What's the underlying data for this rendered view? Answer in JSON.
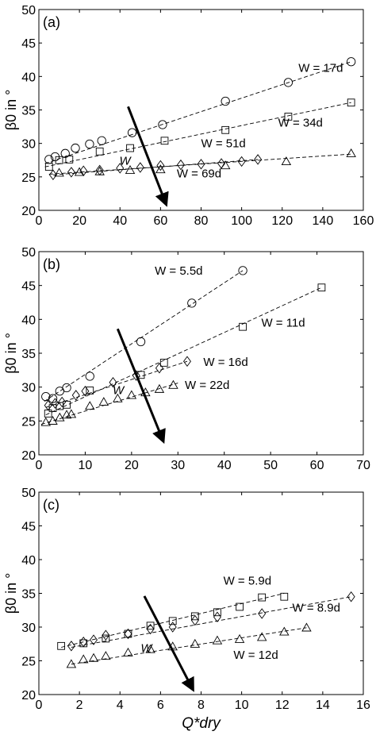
{
  "chart_data": [
    {
      "type": "scatter",
      "panel_label": "(a)",
      "ylabel": "β0 in °",
      "xlabel": "",
      "xlim": [
        0,
        160
      ],
      "ylim": [
        20,
        50
      ],
      "xticks": [
        0,
        20,
        40,
        60,
        80,
        100,
        120,
        140,
        160
      ],
      "yticks": [
        20,
        25,
        30,
        35,
        40,
        45,
        50
      ],
      "arrow_label": "W",
      "arrow": {
        "from": [
          44,
          35.5
        ],
        "to": [
          62,
          21.5
        ]
      },
      "series": [
        {
          "name": "W = 17d",
          "marker": "circle",
          "x": [
            5,
            8,
            13,
            18,
            25,
            31,
            46,
            61,
            92,
            123,
            154
          ],
          "y": [
            27.6,
            28.0,
            28.5,
            29.3,
            29.9,
            30.4,
            31.6,
            32.8,
            36.3,
            39.1,
            42.2
          ],
          "fit": [
            [
              3,
              27.0
            ],
            [
              154,
              42.2
            ]
          ],
          "label_pos": [
            128,
            40.7
          ]
        },
        {
          "name": "W = 34d",
          "marker": "square",
          "x": [
            5,
            10,
            15,
            30,
            45,
            62,
            92,
            123,
            154
          ],
          "y": [
            26.5,
            27.5,
            27.6,
            28.8,
            29.3,
            30.4,
            32.0,
            34.0,
            36.1
          ],
          "fit": [
            [
              3,
              26.5
            ],
            [
              154,
              36.1
            ]
          ],
          "label_pos": [
            118,
            32.5
          ]
        },
        {
          "name": "W = 51d",
          "marker": "diamond",
          "x": [
            7,
            16,
            22,
            30,
            40,
            50,
            60,
            70,
            80,
            90,
            100,
            108
          ],
          "y": [
            25.3,
            25.7,
            25.9,
            26.0,
            26.3,
            26.4,
            26.7,
            26.8,
            26.9,
            27.0,
            27.3,
            27.6
          ],
          "fit": [
            [
              7,
              25.3
            ],
            [
              108,
              27.6
            ]
          ],
          "label_pos": [
            80,
            29.4
          ]
        },
        {
          "name": "W = 69d",
          "marker": "triangle",
          "x": [
            10,
            20,
            30,
            45,
            60,
            92,
            122,
            154
          ],
          "y": [
            25.6,
            25.7,
            25.8,
            26.0,
            26.1,
            26.7,
            27.3,
            28.5
          ],
          "fit": [
            [
              5,
              25.4
            ],
            [
              154,
              28.4
            ]
          ],
          "label_pos": [
            68,
            24.9
          ]
        }
      ]
    },
    {
      "type": "scatter",
      "panel_label": "(b)",
      "ylabel": "β0 in °",
      "xlabel": "",
      "xlim": [
        0,
        70
      ],
      "ylim": [
        20,
        50
      ],
      "xticks": [
        0,
        10,
        20,
        30,
        40,
        50,
        60,
        70
      ],
      "yticks": [
        20,
        25,
        30,
        35,
        40,
        45,
        50
      ],
      "arrow_label": "W",
      "arrow": {
        "from": [
          17,
          38.6
        ],
        "to": [
          26.5,
          22.6
        ]
      },
      "series": [
        {
          "name": "W = 5.5d",
          "marker": "circle",
          "x": [
            1.5,
            3,
            4.5,
            6,
            11,
            22,
            33,
            44
          ],
          "y": [
            28.6,
            28.3,
            29.4,
            29.9,
            31.6,
            36.7,
            42.4,
            47.2
          ],
          "fit": [
            [
              1.2,
              27.9
            ],
            [
              44,
              47.2
            ]
          ],
          "label_pos": [
            25,
            46.6
          ]
        },
        {
          "name": "W = 11d",
          "marker": "square",
          "x": [
            2,
            3,
            4.5,
            6,
            11,
            22,
            27,
            44,
            61
          ],
          "y": [
            26.1,
            26.9,
            27.2,
            27.4,
            29.5,
            31.8,
            33.6,
            38.9,
            44.7
          ],
          "fit": [
            [
              1.5,
              25.9
            ],
            [
              61,
              44.7
            ]
          ],
          "label_pos": [
            48,
            38.9
          ]
        },
        {
          "name": "W = 16d",
          "marker": "diamond",
          "x": [
            2,
            3.5,
            5,
            8,
            10,
            16,
            21,
            26,
            32
          ],
          "y": [
            27.3,
            27.6,
            27.8,
            28.8,
            29.4,
            30.7,
            31.7,
            32.8,
            33.8
          ],
          "fit": [
            [
              1.5,
              27.0
            ],
            [
              32,
              33.8
            ]
          ],
          "label_pos": [
            35.5,
            33.1
          ]
        },
        {
          "name": "W = 22d",
          "marker": "triangle",
          "x": [
            1.5,
            3,
            4.5,
            6,
            7,
            11,
            14,
            17,
            20,
            23,
            26,
            29
          ],
          "y": [
            24.8,
            25.0,
            25.5,
            25.9,
            26.0,
            27.2,
            27.8,
            28.3,
            28.8,
            29.2,
            29.7,
            30.3
          ],
          "fit": [
            [
              0.5,
              24.5
            ],
            [
              30,
              30.6
            ]
          ],
          "label_pos": [
            31.5,
            29.7
          ]
        }
      ]
    },
    {
      "type": "scatter",
      "panel_label": "(c)",
      "ylabel": "β0 in °",
      "xlabel": "Q*dry",
      "xlim": [
        0,
        16
      ],
      "ylim": [
        20,
        50
      ],
      "xticks": [
        0,
        2,
        4,
        6,
        8,
        10,
        12,
        14,
        16
      ],
      "yticks": [
        20,
        25,
        30,
        35,
        40,
        45,
        50
      ],
      "arrow_label": "W",
      "arrow": {
        "from": [
          5.2,
          34.6
        ],
        "to": [
          7.5,
          21.3
        ]
      },
      "series": [
        {
          "name": "W = 5.9d",
          "marker": "square",
          "x": [
            1.1,
            2.2,
            3.3,
            4.4,
            5.5,
            6.6,
            7.7,
            8.8,
            9.9,
            11,
            12.1
          ],
          "y": [
            27.2,
            27.6,
            28.3,
            29.0,
            30.2,
            30.9,
            31.6,
            32.2,
            33.0,
            34.4,
            34.5
          ],
          "fit": [
            [
              1.1,
              27.0
            ],
            [
              12.1,
              35.0
            ]
          ],
          "label_pos": [
            9.1,
            36.3
          ]
        },
        {
          "name": "W = 8.9d",
          "marker": "diamond",
          "x": [
            1.6,
            2.2,
            2.7,
            3.3,
            4.4,
            5.5,
            6.6,
            7.7,
            8.8,
            11,
            15.4
          ],
          "y": [
            27.2,
            27.8,
            28.1,
            28.8,
            29.0,
            29.7,
            30.0,
            31.0,
            31.5,
            32.0,
            34.5
          ],
          "fit": [
            [
              1.6,
              27.0
            ],
            [
              15.4,
              34.5
            ]
          ],
          "label_pos": [
            12.5,
            32.3
          ]
        },
        {
          "name": "W = 12d",
          "marker": "triangle",
          "x": [
            1.6,
            2.2,
            2.7,
            3.3,
            4.4,
            5.5,
            6.6,
            7.7,
            8.8,
            9.9,
            11,
            12.1,
            13.2
          ],
          "y": [
            24.5,
            25.2,
            25.4,
            25.7,
            26.2,
            26.7,
            27.1,
            27.5,
            28.0,
            28.2,
            28.5,
            29.3,
            29.9
          ],
          "fit": [
            [
              1.6,
              24.5
            ],
            [
              13.2,
              29.9
            ]
          ],
          "label_pos": [
            9.6,
            25.3
          ]
        }
      ]
    }
  ]
}
